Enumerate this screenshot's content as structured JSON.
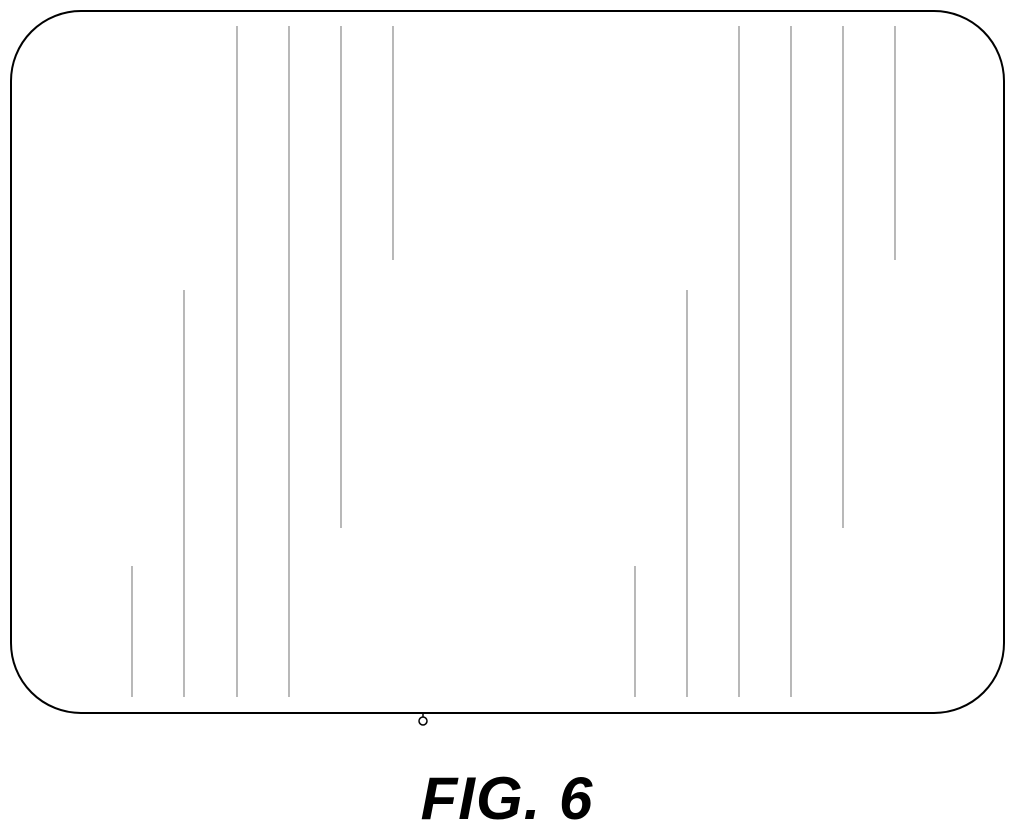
{
  "figure": {
    "label": "FIG. 6"
  },
  "colors": {
    "outline": "#000000",
    "line": "#8a8a8a",
    "background": "#ffffff"
  },
  "elements": {
    "device_outline": "rounded-rectangle",
    "vertical_line_groups": [
      "left-group",
      "right-group"
    ],
    "connector": "small-circle-connector"
  }
}
